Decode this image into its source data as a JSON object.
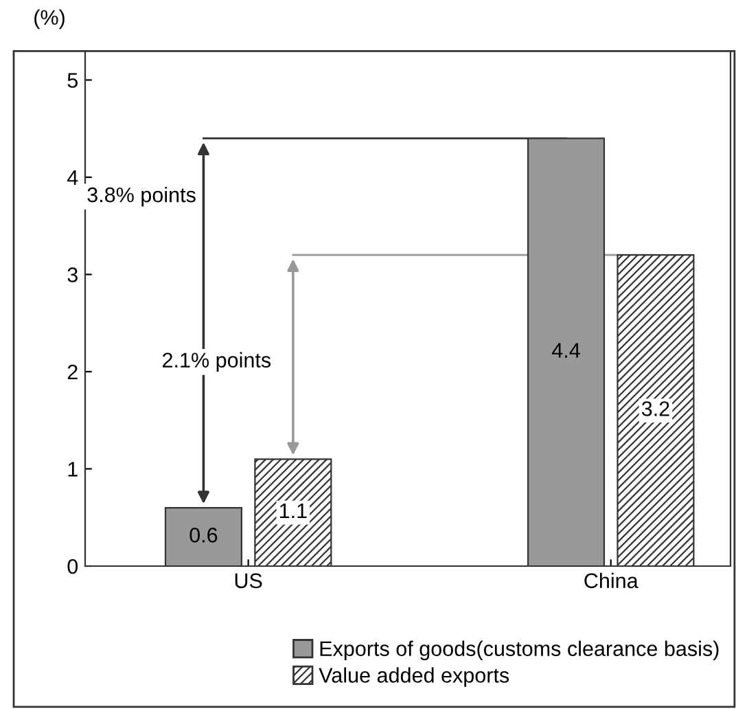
{
  "chart_data": {
    "type": "bar",
    "ylabel": "(%)",
    "categories": [
      "US",
      "China"
    ],
    "series": [
      {
        "name": "Exports of goods(customs clearance basis)",
        "color": "#999999",
        "values": [
          0.6,
          4.4
        ]
      },
      {
        "name": "Value added exports",
        "color": "#333333",
        "values": [
          1.1,
          3.2
        ]
      }
    ],
    "ylim": [
      0,
      5.3
    ],
    "yticks": [
      0,
      1,
      2,
      3,
      4,
      5
    ],
    "ref_lines": [
      {
        "axis": "y",
        "value": 4.4,
        "color": "#333333"
      },
      {
        "axis": "y",
        "value": 3.2,
        "color": "#999999"
      }
    ],
    "annotations": [
      "3.8% points",
      "2.1% points"
    ],
    "data_labels": true,
    "legend": "bottom",
    "grid": false
  }
}
